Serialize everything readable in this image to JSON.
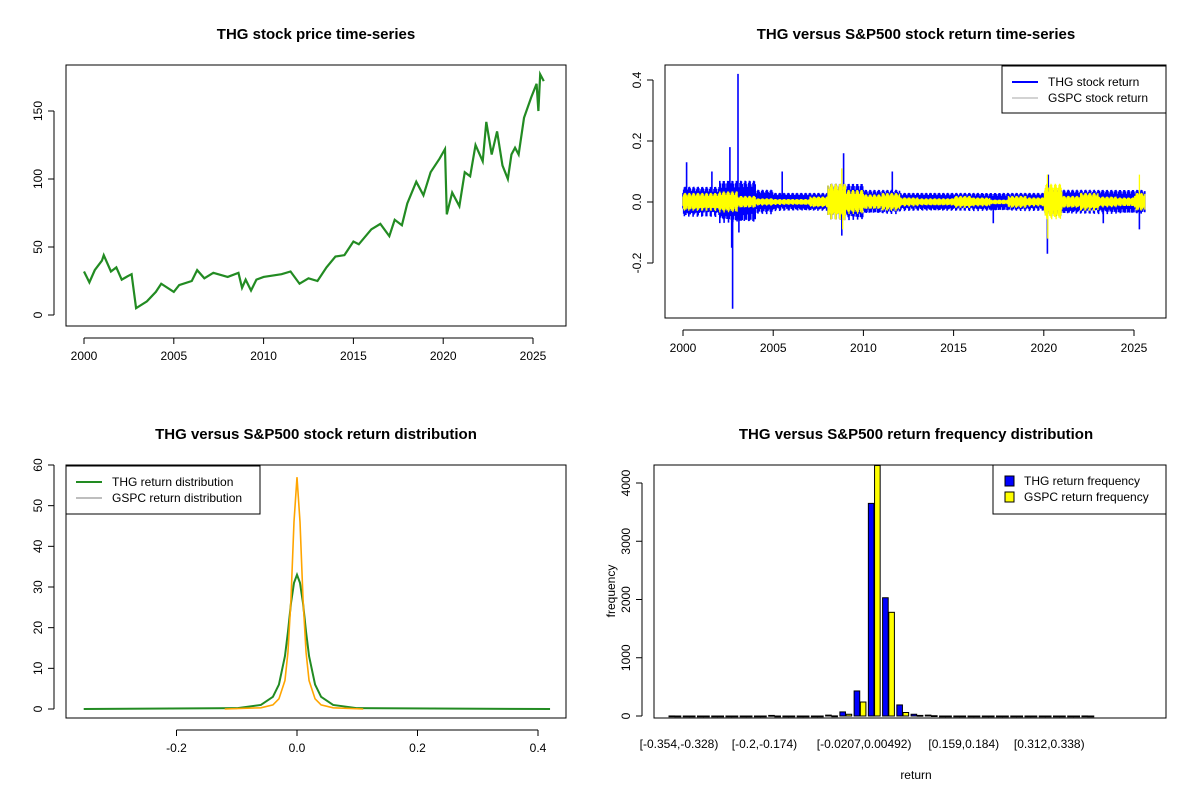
{
  "chart_data": [
    {
      "type": "line",
      "title": "THG stock price time-series",
      "xlabel": "",
      "ylabel": "",
      "xlim": [
        1998.9,
        2026.6
      ],
      "ylim": [
        -8,
        183
      ],
      "xticks": [
        2000,
        2005,
        2010,
        2015,
        2020,
        2025
      ],
      "yticks": [
        0,
        50,
        100,
        150
      ],
      "grid": false,
      "series": [
        {
          "color": "#228B22",
          "x": [
            2000,
            2000.3,
            2000.6,
            2001,
            2001.1,
            2001.5,
            2001.8,
            2002.1,
            2002.5,
            2002.65,
            2002.8,
            2002.9,
            2003.5,
            2004,
            2004.3,
            2005,
            2005.3,
            2006,
            2006.3,
            2006.7,
            2007.2,
            2008,
            2008.6,
            2008.8,
            2009,
            2009.3,
            2009.6,
            2010,
            2011,
            2011.5,
            2012,
            2012.5,
            2013,
            2013.5,
            2014,
            2014.5,
            2015,
            2015.3,
            2016,
            2016.5,
            2017,
            2017.3,
            2017.7,
            2018,
            2018.5,
            2018.9,
            2019.3,
            2019.8,
            2020.1,
            2020.2,
            2020.5,
            2020.9,
            2021.2,
            2021.5,
            2021.8,
            2022.2,
            2022.4,
            2022.7,
            2023,
            2023.3,
            2023.6,
            2023.8,
            2024,
            2024.2,
            2024.5,
            2024.9,
            2025.2,
            2025.3,
            2025.4,
            2025.6
          ],
          "y": [
            32,
            24,
            33,
            40,
            44,
            32,
            35,
            26,
            29,
            30,
            15,
            5,
            10,
            17,
            23,
            17,
            22,
            25,
            33,
            27,
            31,
            28,
            31,
            20,
            26,
            18,
            26,
            28,
            30,
            32,
            23,
            27,
            25,
            35,
            43,
            44,
            54,
            52,
            63,
            67,
            58,
            70,
            66,
            82,
            98,
            88,
            105,
            115,
            122,
            74,
            90,
            80,
            105,
            102,
            125,
            113,
            142,
            118,
            135,
            110,
            100,
            118,
            123,
            118,
            145,
            160,
            170,
            150,
            177,
            172
          ]
        }
      ]
    },
    {
      "type": "line",
      "title": "THG versus S&P500 stock return time-series",
      "xlim": [
        1999,
        2026.6
      ],
      "ylim": [
        -0.38,
        0.45
      ],
      "xticks": [
        2000,
        2005,
        2010,
        2015,
        2020,
        2025
      ],
      "yticks": [
        -0.2,
        0.0,
        0.2,
        0.4
      ],
      "ytick_labels": [
        "-0.2",
        "0.0",
        "0.2",
        "0.4"
      ],
      "grid": false,
      "legend": {
        "position": "top-right",
        "entries": [
          "THG stock return",
          "GSPC stock return"
        ]
      },
      "series": [
        {
          "name": "THG stock return",
          "color": "#0000FF",
          "legend_color": "#0000FF",
          "band_years": [
            2000,
            2001,
            2002,
            2003,
            2004,
            2005,
            2006,
            2007,
            2008,
            2009,
            2010,
            2011,
            2012,
            2013,
            2014,
            2015,
            2016,
            2017,
            2018,
            2019,
            2020,
            2021,
            2022,
            2023,
            2024,
            2025
          ],
          "band_halfwidth": [
            0.05,
            0.05,
            0.07,
            0.07,
            0.04,
            0.03,
            0.03,
            0.03,
            0.06,
            0.06,
            0.04,
            0.04,
            0.03,
            0.03,
            0.03,
            0.03,
            0.03,
            0.03,
            0.03,
            0.03,
            0.05,
            0.04,
            0.04,
            0.04,
            0.04,
            0.04
          ],
          "spikes_x": [
            2000.2,
            2001.6,
            2002.6,
            2002.7,
            2002.75,
            2003.05,
            2003.1,
            2005.5,
            2008.8,
            2008.9,
            2011.6,
            2017.2,
            2020.2,
            2020.25,
            2023.3,
            2025.3
          ],
          "spikes_y": [
            0.13,
            0.1,
            0.18,
            -0.15,
            -0.35,
            0.42,
            -0.1,
            0.1,
            -0.11,
            0.16,
            0.1,
            -0.07,
            -0.17,
            0.09,
            -0.07,
            -0.09
          ]
        },
        {
          "name": "GSPC stock return",
          "color": "#FFFF00",
          "legend_color": "#D3D3D3",
          "band_years": [
            2000,
            2001,
            2002,
            2003,
            2004,
            2005,
            2006,
            2007,
            2008,
            2009,
            2010,
            2011,
            2012,
            2013,
            2014,
            2015,
            2016,
            2017,
            2018,
            2019,
            2020,
            2021,
            2022,
            2023,
            2024,
            2025
          ],
          "band_halfwidth": [
            0.03,
            0.03,
            0.035,
            0.02,
            0.012,
            0.01,
            0.01,
            0.018,
            0.06,
            0.04,
            0.025,
            0.03,
            0.015,
            0.012,
            0.012,
            0.02,
            0.015,
            0.008,
            0.02,
            0.015,
            0.06,
            0.02,
            0.03,
            0.018,
            0.015,
            0.03
          ],
          "spikes_x": [
            2008.8,
            2008.85,
            2020.2,
            2020.22,
            2025.3
          ],
          "spikes_y": [
            0.11,
            -0.09,
            0.09,
            -0.12,
            0.09
          ]
        }
      ]
    },
    {
      "type": "line",
      "title": "THG versus S&P500 stock return distribution",
      "xlim": [
        -0.385,
        0.45
      ],
      "ylim": [
        0,
        60
      ],
      "xticks": [
        -0.2,
        0.0,
        0.2,
        0.4
      ],
      "yticks": [
        0,
        10,
        20,
        30,
        40,
        50,
        60
      ],
      "grid": false,
      "legend": {
        "position": "top-left",
        "entries": [
          "THG return distribution",
          "GSPC return distribution"
        ]
      },
      "series": [
        {
          "name": "THG return distribution",
          "color": "#228B22",
          "legend_color": "#228B22",
          "x": [
            -0.354,
            -0.1,
            -0.06,
            -0.04,
            -0.03,
            -0.02,
            -0.015,
            -0.01,
            -0.005,
            0,
            0.005,
            0.01,
            0.015,
            0.02,
            0.03,
            0.04,
            0.06,
            0.1,
            0.42
          ],
          "y": [
            0,
            0.2,
            1,
            3,
            6,
            13,
            19,
            26,
            31,
            33,
            31,
            26,
            19,
            13,
            6,
            3,
            1,
            0.2,
            0
          ]
        },
        {
          "name": "GSPC return distribution",
          "color": "#FFA500",
          "legend_color": "#BEBEBE",
          "x": [
            -0.12,
            -0.06,
            -0.04,
            -0.03,
            -0.02,
            -0.015,
            -0.01,
            -0.005,
            0,
            0.005,
            0.01,
            0.015,
            0.02,
            0.03,
            0.04,
            0.06,
            0.11
          ],
          "y": [
            0,
            0.3,
            1,
            2.5,
            7,
            14,
            27,
            46,
            57,
            46,
            27,
            14,
            7,
            2.5,
            1,
            0.3,
            0
          ]
        }
      ]
    },
    {
      "type": "bar",
      "title": "THG versus S&P500 return frequency distribution",
      "xlabel": "return",
      "ylabel": "frequency",
      "ylim": [
        0,
        4300
      ],
      "yticks": [
        0,
        1000,
        2000,
        3000,
        4000
      ],
      "grid": false,
      "legend": {
        "position": "top-right",
        "entries": [
          "THG return frequency",
          "GSPC return frequency"
        ]
      },
      "category_labels": {
        "0": "[-0.354,-0.328)",
        "6": "[-0.2,-0.174)",
        "13": "[-0.0207,0.00492)",
        "20": "[0.159,0.184)",
        "26": "[0.312,0.338)"
      },
      "series": [
        {
          "name": "THG return frequency",
          "color": "#0000FF",
          "values": [
            1,
            0,
            0,
            0,
            0,
            0,
            0,
            10,
            0,
            0,
            0,
            15,
            70,
            430,
            3650,
            2030,
            190,
            30,
            15,
            0,
            0,
            0,
            0,
            0,
            0,
            0,
            0,
            0,
            0,
            1
          ]
        },
        {
          "name": "GSPC return frequency",
          "color": "#FFFF00",
          "values": [
            0,
            0,
            0,
            0,
            0,
            0,
            0,
            0,
            0,
            0,
            0,
            2,
            30,
            240,
            4500,
            1780,
            60,
            10,
            5,
            0,
            0,
            0,
            0,
            0,
            0,
            0,
            0,
            0,
            0,
            0
          ]
        }
      ]
    }
  ]
}
